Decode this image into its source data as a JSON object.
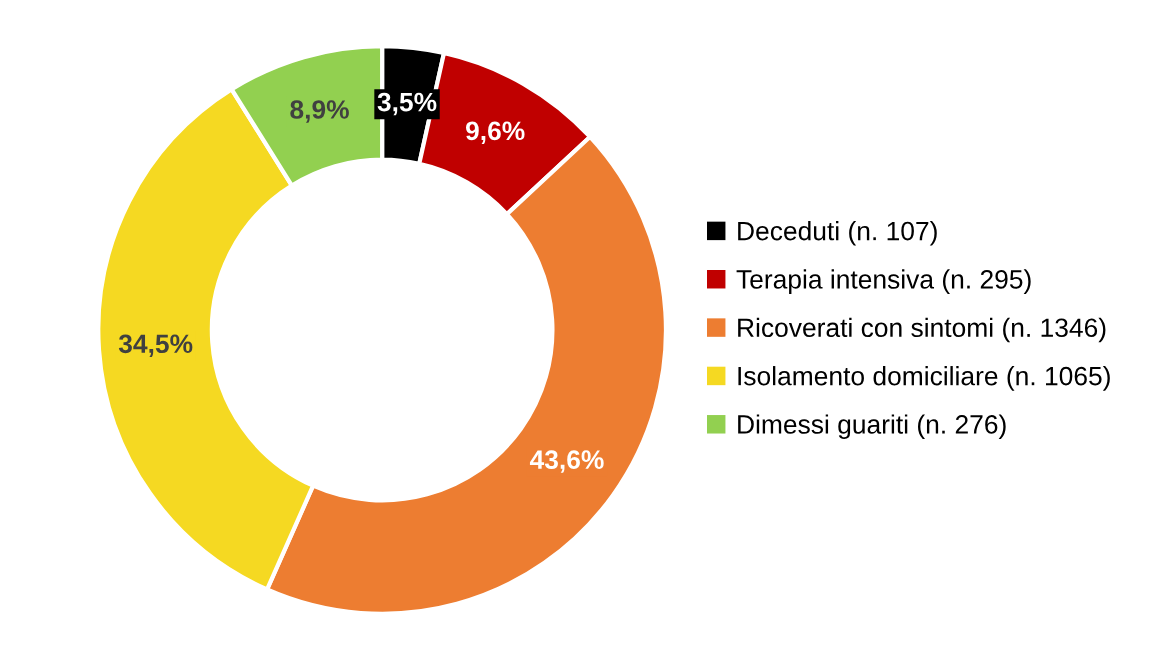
{
  "chart_data": {
    "type": "donut",
    "categories": [
      "Deceduti (n. 107)",
      "Terapia intensiva (n. 295)",
      "Ricoverati con sintomi (n. 1346)",
      "Isolamento domiciliare (n. 1065)",
      "Dimessi guariti (n. 276)"
    ],
    "values": [
      3.5,
      9.6,
      43.6,
      34.5,
      8.9
    ],
    "value_labels": [
      "3,5%",
      "9,6%",
      "43,6%",
      "34,5%",
      "8,9%"
    ],
    "colors": [
      "#000000",
      "#c00000",
      "#ed7d31",
      "#f5d922",
      "#92d050"
    ],
    "legend": "right"
  }
}
